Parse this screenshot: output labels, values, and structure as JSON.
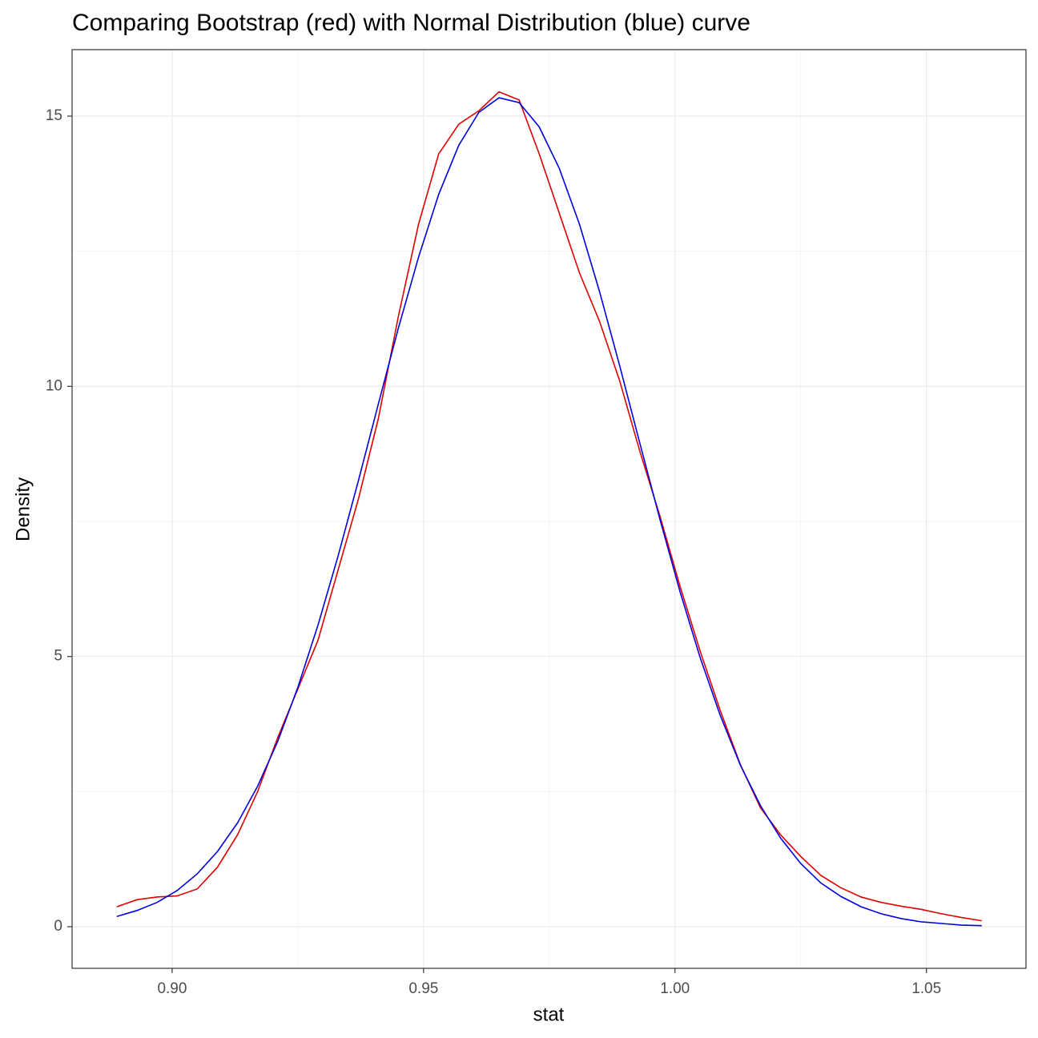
{
  "chart_data": {
    "type": "line",
    "title": "Comparing Bootstrap (red) with Normal Distribution (blue) curve",
    "x_label": "stat",
    "y_label": "Density",
    "x": [
      0.889,
      0.893,
      0.897,
      0.901,
      0.905,
      0.909,
      0.913,
      0.917,
      0.921,
      0.925,
      0.929,
      0.933,
      0.937,
      0.941,
      0.945,
      0.949,
      0.953,
      0.957,
      0.961,
      0.965,
      0.969,
      0.973,
      0.977,
      0.981,
      0.985,
      0.989,
      0.993,
      0.997,
      1.001,
      1.005,
      1.009,
      1.013,
      1.017,
      1.021,
      1.025,
      1.029,
      1.033,
      1.037,
      1.041,
      1.045,
      1.049,
      1.053,
      1.057,
      1.061
    ],
    "series": [
      {
        "color": "#e00000",
        "values": [
          0.37,
          0.5,
          0.55,
          0.57,
          0.7,
          1.1,
          1.7,
          2.5,
          3.5,
          4.4,
          5.3,
          6.6,
          7.9,
          9.4,
          11.3,
          13.0,
          14.3,
          14.85,
          15.1,
          15.45,
          15.3,
          14.3,
          13.2,
          12.1,
          11.2,
          10.1,
          8.8,
          7.6,
          6.3,
          5.1,
          4.0,
          3.0,
          2.2,
          1.7,
          1.3,
          0.95,
          0.72,
          0.55,
          0.45,
          0.38,
          0.32,
          0.24,
          0.17,
          0.11
        ]
      },
      {
        "color": "#0000e0",
        "values": [
          0.19,
          0.3,
          0.45,
          0.67,
          0.98,
          1.39,
          1.92,
          2.6,
          3.43,
          4.43,
          5.58,
          6.86,
          8.24,
          9.67,
          11.08,
          12.39,
          13.55,
          14.46,
          15.07,
          15.34,
          15.25,
          14.8,
          14.03,
          13.0,
          11.75,
          10.38,
          8.95,
          7.54,
          6.2,
          4.98,
          3.91,
          2.99,
          2.24,
          1.64,
          1.17,
          0.81,
          0.56,
          0.37,
          0.24,
          0.15,
          0.09,
          0.06,
          0.03,
          0.02
        ]
      }
    ],
    "xlim": [
      0.8801,
      1.0698
    ],
    "ylim": [
      -0.77,
      16.23
    ],
    "xticks": [
      {
        "value": 0.9,
        "label": "0.90"
      },
      {
        "value": 0.95,
        "label": "0.95"
      },
      {
        "value": 1.0,
        "label": "1.00"
      },
      {
        "value": 1.05,
        "label": "1.05"
      }
    ],
    "yticks": [
      0,
      5,
      10,
      15
    ],
    "xminorticks": [
      0.925,
      0.975,
      1.025
    ],
    "yminorticks": [
      2.5,
      7.5,
      12.5
    ],
    "grid": true
  }
}
